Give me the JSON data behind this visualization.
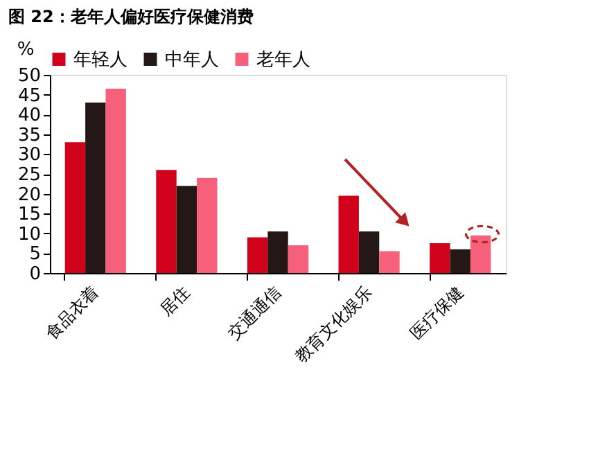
{
  "chart_data": {
    "type": "bar",
    "title": "图 22：老年人偏好医疗保健消费",
    "ylabel": "%",
    "categories": [
      "食品衣着",
      "居住",
      "交通通信",
      "教育文化娱乐",
      "医疗保健"
    ],
    "series": [
      {
        "name": "年轻人",
        "color": "#d0021b",
        "values": [
          33,
          26,
          9,
          19.5,
          7.5
        ]
      },
      {
        "name": "中年人",
        "color": "#231815",
        "values": [
          43,
          22,
          10.5,
          10.5,
          6
        ]
      },
      {
        "name": "老年人",
        "color": "#f7607a",
        "values": [
          46.5,
          24,
          7,
          5.5,
          9.5
        ]
      }
    ],
    "ylim": [
      0,
      50
    ],
    "yticks": [
      0,
      5,
      10,
      15,
      20,
      25,
      30,
      35,
      40,
      45,
      50
    ],
    "grid": false,
    "legend": "top"
  }
}
